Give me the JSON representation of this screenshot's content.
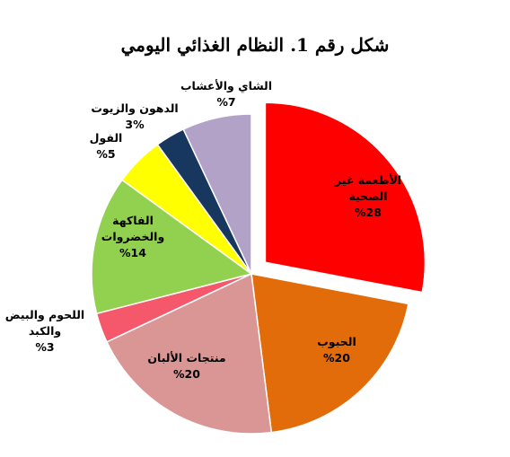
{
  "title": "شكل رقم 1. النظام الغذائي اليومي",
  "chart_data": {
    "type": "pie",
    "title": "شكل رقم 1. النظام الغذائي اليومي",
    "slices": [
      {
        "name": "الأطعمة غير الصحية",
        "label_lines": [
          "الأطعمة غير",
          "الصحية"
        ],
        "value": 28,
        "value_label": "%28",
        "color": "#FF0000"
      },
      {
        "name": "الحبوب",
        "label_lines": [
          "الحبوب"
        ],
        "value": 20,
        "value_label": "%20",
        "color": "#E36C0A"
      },
      {
        "name": "منتجات الألبان",
        "label_lines": [
          "منتجات الألبان"
        ],
        "value": 20,
        "value_label": "%20",
        "color": "#D99694"
      },
      {
        "name": "اللحوم والبيض والكبد",
        "label_lines": [
          "اللحوم والبيض",
          "والكبد"
        ],
        "value": 3,
        "value_label": "%3",
        "color": "#F4586A"
      },
      {
        "name": "الفاكهة والخضروات",
        "label_lines": [
          "الفاكهة",
          "والخضروات"
        ],
        "value": 14,
        "value_label": "%14",
        "color": "#92D050"
      },
      {
        "name": "الفول",
        "label_lines": [
          "الفول"
        ],
        "value": 5,
        "value_label": "%5",
        "color": "#FFFF00"
      },
      {
        "name": "الدهون والزيوت",
        "label_lines": [
          "الدهون والزيوت"
        ],
        "value": 3,
        "value_label": "3%",
        "color": "#17375E"
      },
      {
        "name": "الشاي والأعشاب",
        "label_lines": [
          "الشاي والأعشاب"
        ],
        "value": 7,
        "value_label": "%7",
        "color": "#B3A2C7"
      }
    ],
    "exploded_slice": "الأطعمة غير الصحية",
    "legend": "none",
    "labels": "data labels with category name and percentage"
  }
}
